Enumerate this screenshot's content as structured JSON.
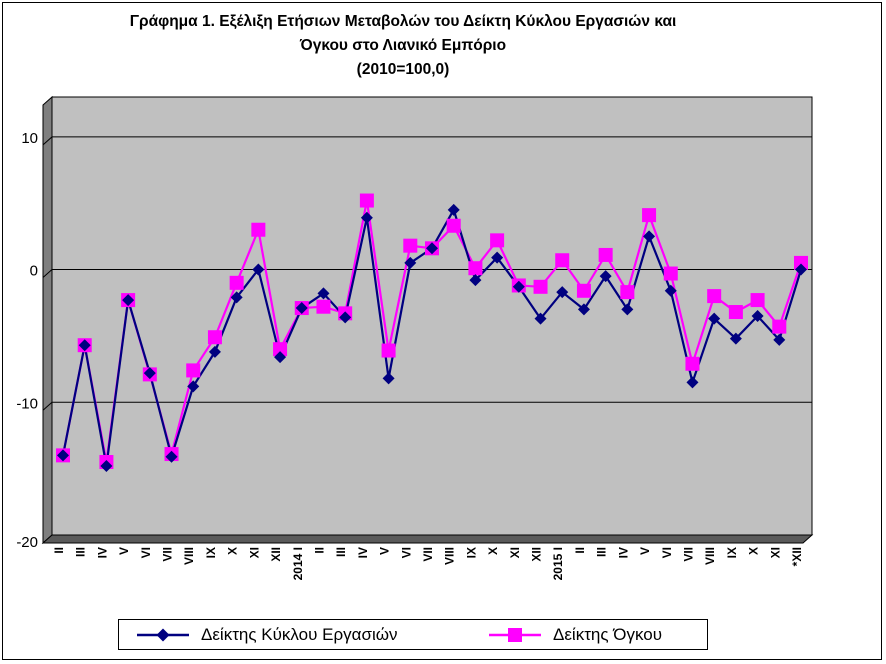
{
  "chart_data": {
    "type": "line",
    "title": "Γράφημα 1. Εξέλιξη Ετήσιων Μεταβολών του Δείκτη Κύκλου Εργασιών και Όγκου στο Λιανικό Εμπόριο",
    "title_lines": [
      "Γράφημα 1. Εξέλιξη Ετήσιων Μεταβολών του Δείκτη Κύκλου Εργασιών και",
      "Όγκου στο Λιανικό Εμπόριο",
      "(2010=100,0)"
    ],
    "xlabel": "",
    "ylabel": "",
    "ylim": [
      -20,
      13
    ],
    "yticks": [
      10,
      0,
      -10,
      -20
    ],
    "grid": true,
    "legend_position": "bottom",
    "categories": [
      "II",
      "III",
      "IV",
      "V",
      "VI",
      "VII",
      "VIII",
      "IX",
      "X",
      "XI",
      "XII",
      "2014 I",
      "II",
      "III",
      "IV",
      "V",
      "VI",
      "VII",
      "VIII",
      "IX",
      "X",
      "XI",
      "XII",
      "2015 I",
      "II",
      "III",
      "IV",
      "V",
      "VI",
      "VII",
      "VIII",
      "IX",
      "X",
      "XI",
      "*XII"
    ],
    "series": [
      {
        "name": "Δείκτης Κύκλου Εργασιών",
        "color": "#000080",
        "marker": "diamond",
        "values": [
          -14.0,
          -5.7,
          -14.8,
          -2.3,
          -7.8,
          -14.1,
          -8.8,
          -6.2,
          -2.1,
          0.0,
          -6.6,
          -2.9,
          -1.8,
          -3.6,
          3.9,
          -8.2,
          0.5,
          1.6,
          4.5,
          -0.8,
          0.9,
          -1.3,
          -3.7,
          -1.7,
          -3.0,
          -0.5,
          -3.0,
          2.5,
          -1.6,
          -8.5,
          -3.7,
          -5.2,
          -3.5,
          -5.3,
          0.0
        ]
      },
      {
        "name": "Δείκτης Όγκου",
        "color": "#FF00FF",
        "marker": "square",
        "values": [
          -14.0,
          -5.7,
          -14.5,
          -2.3,
          -7.9,
          -13.9,
          -7.6,
          -5.1,
          -1.0,
          3.0,
          -6.0,
          -2.9,
          -2.8,
          -3.3,
          5.2,
          -6.1,
          1.8,
          1.6,
          3.3,
          0.1,
          2.2,
          -1.2,
          -1.3,
          0.7,
          -1.6,
          1.1,
          -1.7,
          4.1,
          -0.3,
          -7.1,
          -2.0,
          -3.2,
          -2.3,
          -4.3,
          0.5
        ]
      }
    ]
  }
}
